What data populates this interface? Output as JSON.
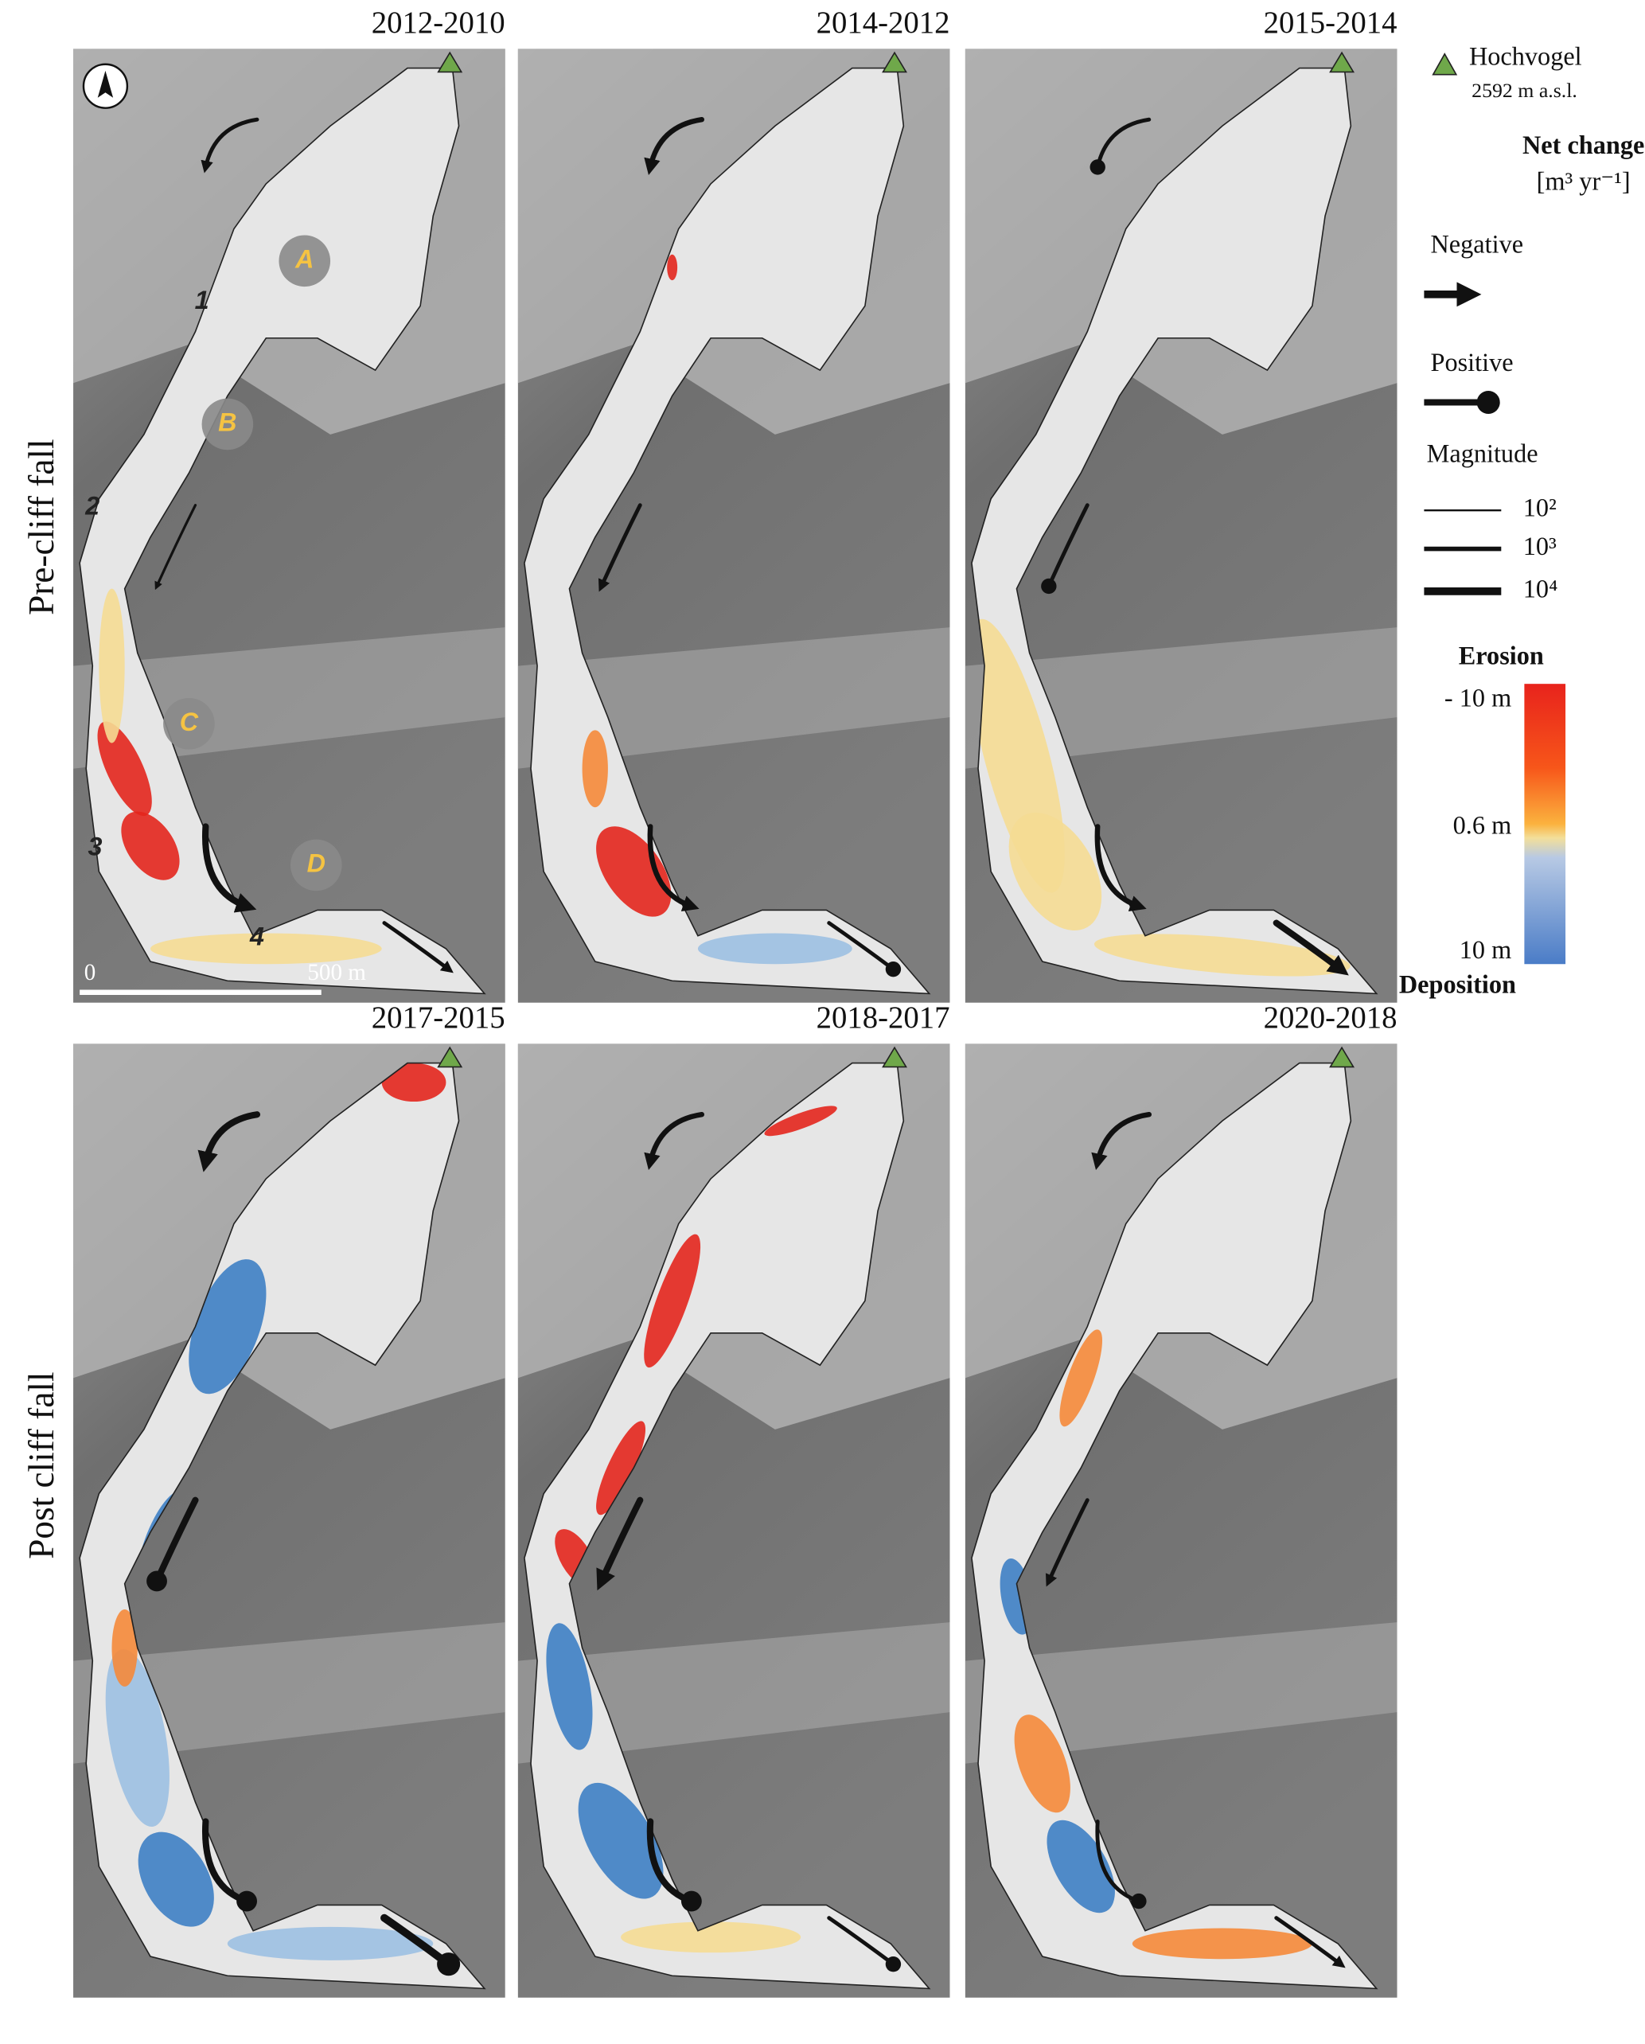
{
  "panels": [
    {
      "title": "2012-2010"
    },
    {
      "title": "2014-2012"
    },
    {
      "title": "2015-2014"
    },
    {
      "title": "2017-2015"
    },
    {
      "title": "2018-2017"
    },
    {
      "title": "2020-2018"
    }
  ],
  "row_labels": [
    "Pre-cliff fall",
    "Post cliff fall"
  ],
  "zone_labels": [
    "A",
    "B",
    "C",
    "D"
  ],
  "reach_labels": [
    "1",
    "2",
    "3",
    "4"
  ],
  "scale_bar": {
    "start": "0",
    "end": "500 m"
  },
  "legend": {
    "peak_name": "Hochvogel",
    "peak_elevation": "2592 m a.s.l.",
    "title": "Net change",
    "unit": "[m³ yr⁻¹]",
    "negative": "Negative",
    "positive": "Positive",
    "magnitude": "Magnitude",
    "magnitude_levels": [
      "10²",
      "10³",
      "10⁴"
    ],
    "colorbar_top": "Erosion",
    "colorbar_bottom": "Deposition",
    "colorbar_labels": [
      "- 10 m",
      "0.6 m",
      "10 m"
    ]
  }
}
